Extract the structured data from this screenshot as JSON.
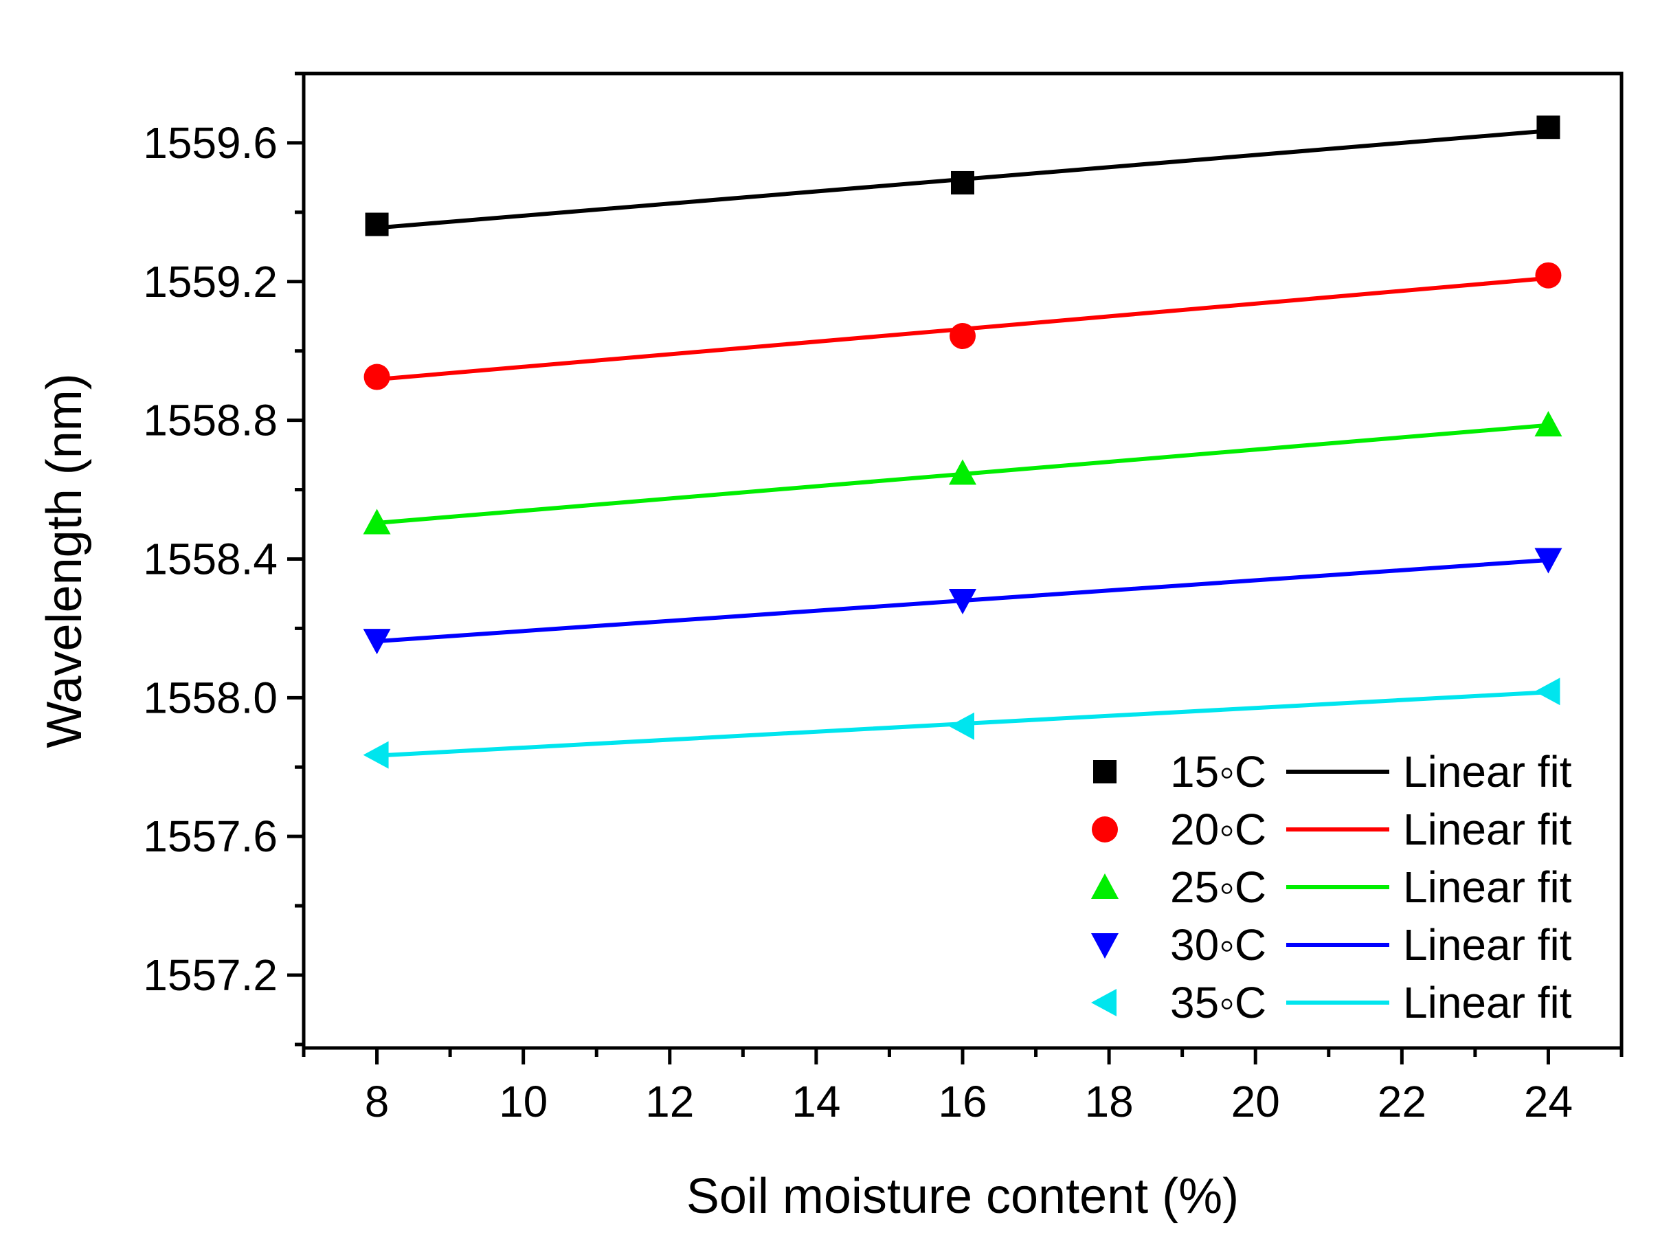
{
  "chart_data": {
    "type": "scatter",
    "title": "",
    "xlabel": "Soil moisture content (%)",
    "ylabel": "Wavelength (nm)",
    "xlim": [
      7,
      25
    ],
    "ylim": [
      1556.99,
      1559.8
    ],
    "xticks": [
      8,
      10,
      12,
      14,
      16,
      18,
      20,
      22,
      24
    ],
    "xtick_labels": [
      "8",
      "10",
      "12",
      "14",
      "16",
      "18",
      "20",
      "22",
      "24"
    ],
    "yticks": [
      1557.2,
      1557.6,
      1558.0,
      1558.4,
      1558.8,
      1559.2,
      1559.6
    ],
    "ytick_labels": [
      "1557.2",
      "1557.6",
      "1558.0",
      "1558.4",
      "1558.8",
      "1559.2",
      "1559.6"
    ],
    "grid": false,
    "legend_position": "bottom-right",
    "x": [
      8,
      16,
      24
    ],
    "series": [
      {
        "name": "15◦C",
        "marker": "square",
        "color": "#000000",
        "values": [
          1559.365,
          1559.485,
          1559.645
        ],
        "fit_name": "Linear fit",
        "fit": [
          1559.355,
          1559.495,
          1559.635
        ]
      },
      {
        "name": "20◦C",
        "marker": "circle",
        "color": "#ff0000",
        "values": [
          1558.925,
          1559.043,
          1559.218
        ],
        "fit_name": "Linear fit",
        "fit": [
          1558.918,
          1559.063,
          1559.21
        ]
      },
      {
        "name": "25◦C",
        "marker": "triangle-up",
        "color": "#00ee00",
        "values": [
          1558.505,
          1558.648,
          1558.787
        ],
        "fit_name": "Linear fit",
        "fit": [
          1558.504,
          1558.645,
          1558.786
        ]
      },
      {
        "name": "30◦C",
        "marker": "triangle-down",
        "color": "#0000ff",
        "values": [
          1558.165,
          1558.28,
          1558.398
        ],
        "fit_name": "Linear fit",
        "fit": [
          1558.163,
          1558.28,
          1558.397
        ]
      },
      {
        "name": "35◦C",
        "marker": "triangle-left",
        "color": "#00e5ee",
        "values": [
          1557.835,
          1557.918,
          1558.018
        ],
        "fit_name": "Linear fit",
        "fit": [
          1557.833,
          1557.925,
          1558.016
        ]
      }
    ]
  }
}
